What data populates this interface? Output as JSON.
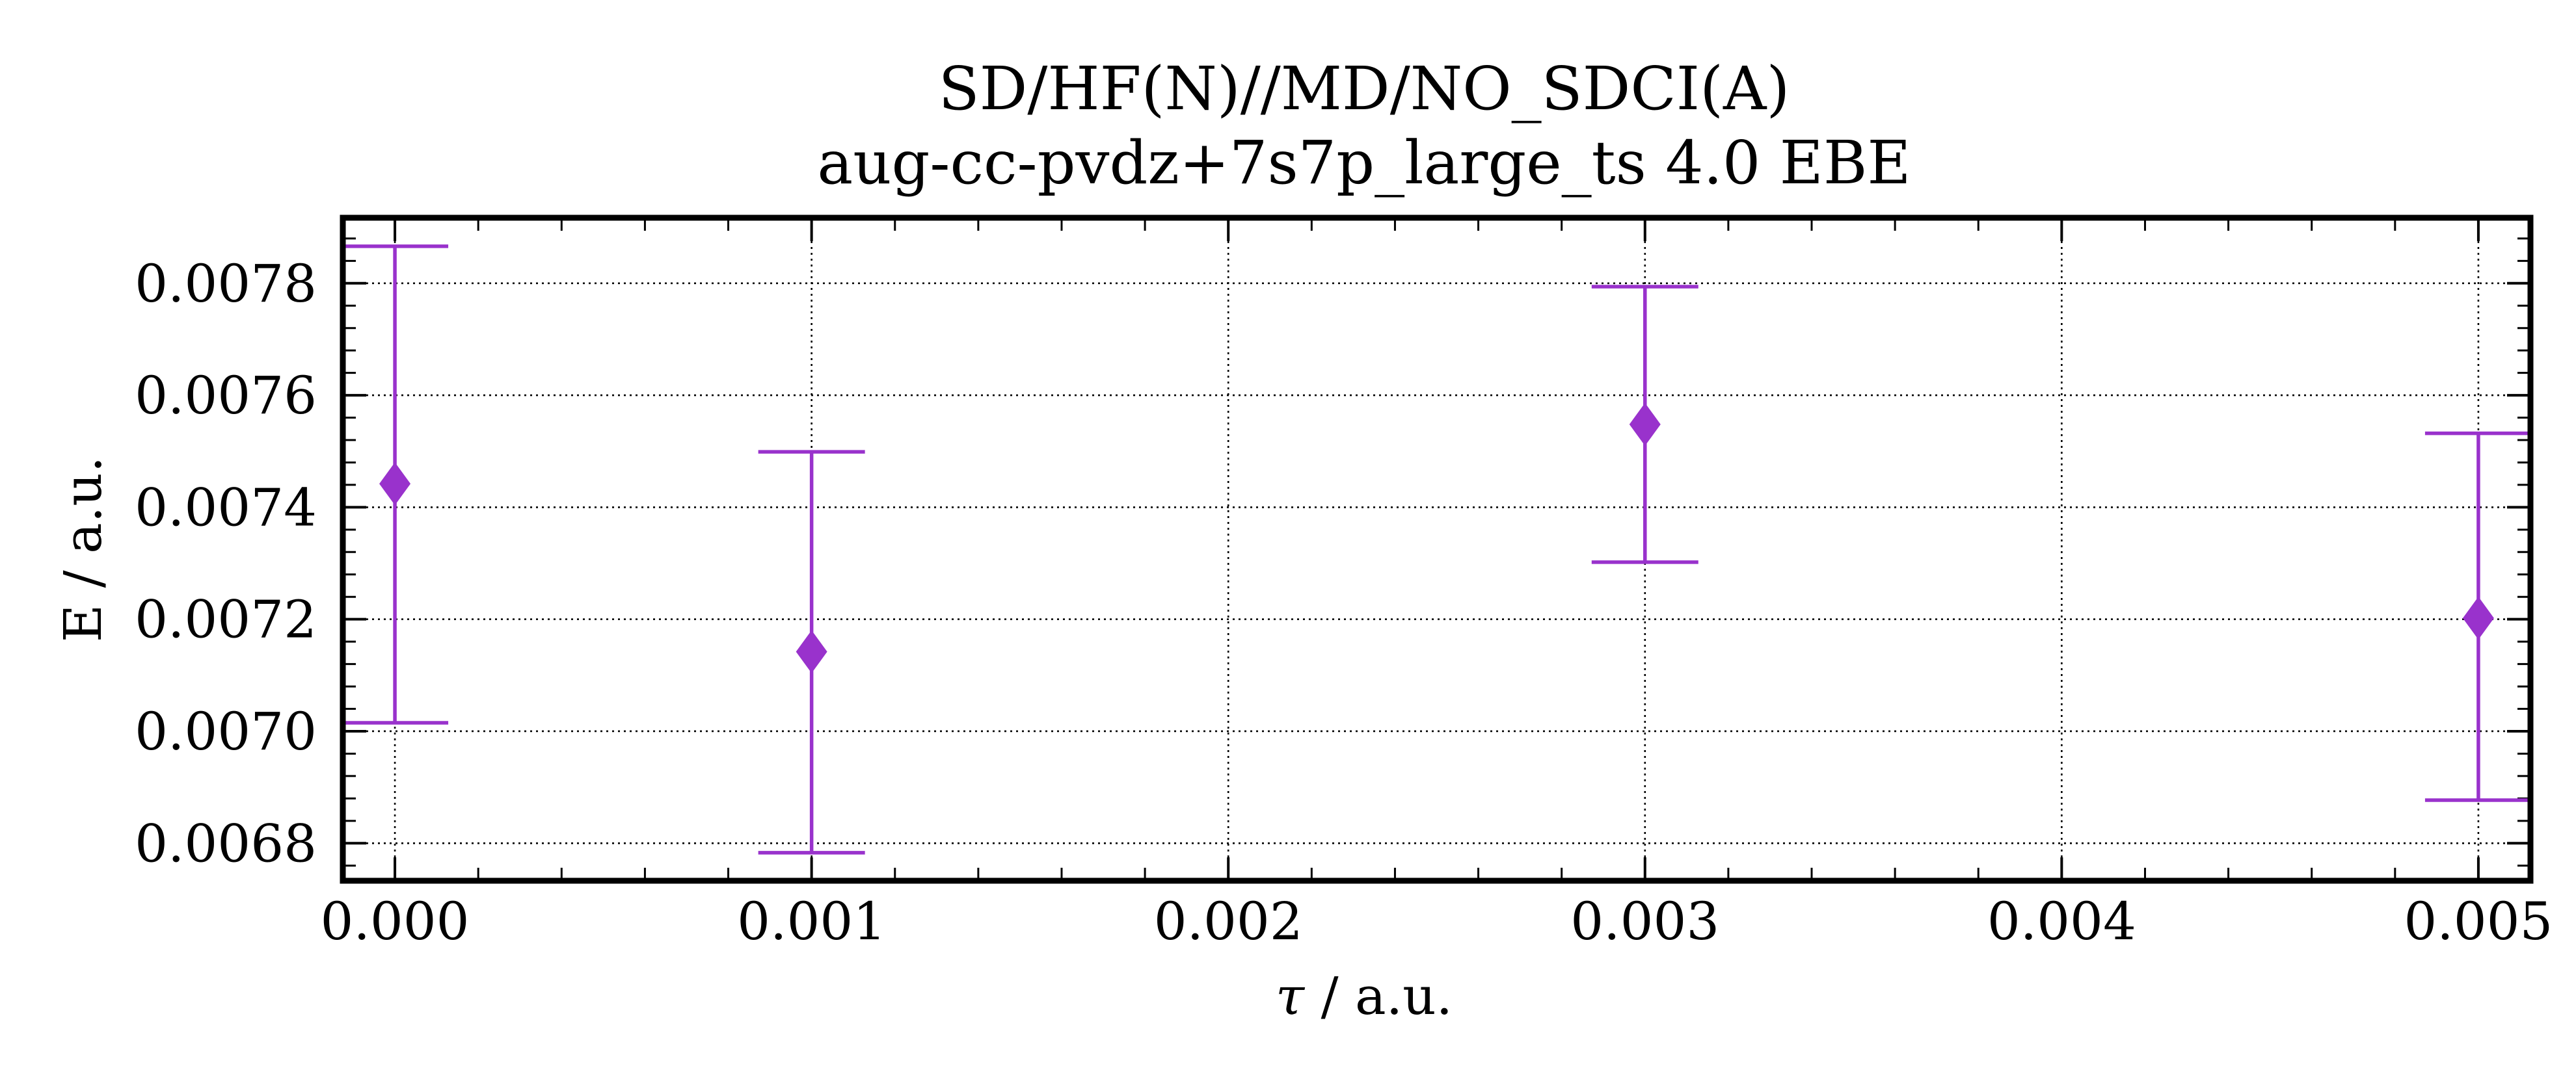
{
  "chart_data": {
    "type": "scatter",
    "title": "SD/HF(N)//MD/NO_SDCI(A)",
    "subtitle": "aug-cc-pvdz+7s7p_large_ts 4.0 EBE",
    "xlabel": {
      "symbol": "τ",
      "text": " / a.u."
    },
    "ylabel": "E / a.u.",
    "xlim": [
      -0.000125,
      0.005125
    ],
    "ylim": [
      0.006733,
      0.007917
    ],
    "x_ticks": [
      {
        "value": 0.0,
        "label": "0.000"
      },
      {
        "value": 0.001,
        "label": "0.001"
      },
      {
        "value": 0.002,
        "label": "0.002"
      },
      {
        "value": 0.003,
        "label": "0.003"
      },
      {
        "value": 0.004,
        "label": "0.004"
      },
      {
        "value": 0.005,
        "label": "0.005"
      }
    ],
    "y_ticks": [
      {
        "value": 0.0068,
        "label": "0.0068"
      },
      {
        "value": 0.007,
        "label": "0.0070"
      },
      {
        "value": 0.0072,
        "label": "0.0072"
      },
      {
        "value": 0.0074,
        "label": "0.0074"
      },
      {
        "value": 0.0076,
        "label": "0.0076"
      },
      {
        "value": 0.0078,
        "label": "0.0078"
      }
    ],
    "x_minor_step": 0.0002,
    "y_minor_step": 4e-05,
    "grid": true,
    "series": [
      {
        "color": "#9932CC",
        "marker": "diamond",
        "points": [
          {
            "x": 0.0,
            "y": 0.007442,
            "err_low": 0.007015,
            "err_high": 0.007866
          },
          {
            "x": 0.001,
            "y": 0.007142,
            "err_low": 0.006783,
            "err_high": 0.007499
          },
          {
            "x": 0.003,
            "y": 0.007548,
            "err_low": 0.007302,
            "err_high": 0.007794
          },
          {
            "x": 0.005,
            "y": 0.007202,
            "err_low": 0.006877,
            "err_high": 0.007532
          }
        ]
      }
    ]
  }
}
